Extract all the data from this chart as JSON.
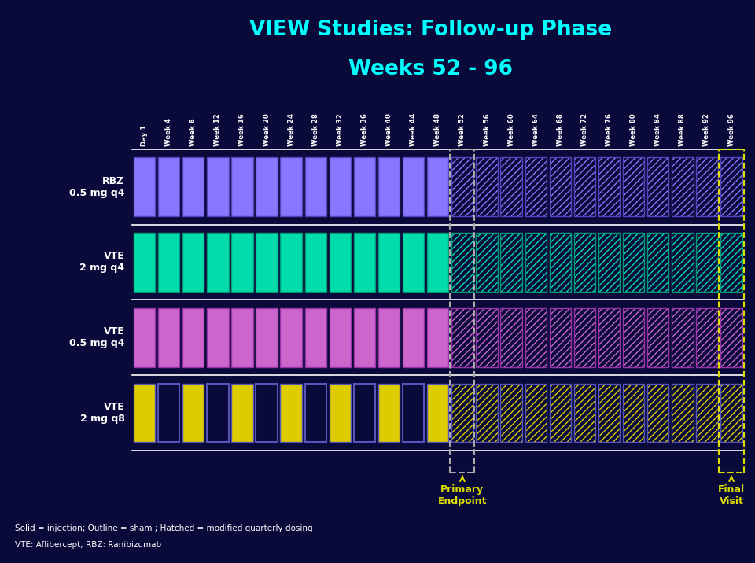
{
  "title_line1": "VIEW Studies: Follow-up Phase",
  "title_line2": "Weeks 52 - 96",
  "title_color": "#00FFFF",
  "bg_color": "#0A0A3A",
  "row_line_color": "#FFFFFF",
  "col_labels": [
    "Day 1",
    "Week 4",
    "Week 8",
    "Week 12",
    "Week 16",
    "Week 20",
    "Week 24",
    "Week 28",
    "Week 32",
    "Week 36",
    "Week 40",
    "Week 44",
    "Week 48",
    "Week 52",
    "Week 56",
    "Week 60",
    "Week 64",
    "Week 68",
    "Week 72",
    "Week 76",
    "Week 80",
    "Week 84",
    "Week 88",
    "Week 92",
    "Week 96"
  ],
  "primary_endpoint_col": 13,
  "final_visit_col": 24,
  "rows": [
    {
      "label": "RBZ\n0.5 mg q4",
      "fill_color": "#8877FF",
      "outline_color": "#5544BB",
      "solid_cols": [
        0,
        1,
        2,
        3,
        4,
        5,
        6,
        7,
        8,
        9,
        10,
        11,
        12
      ],
      "outline_only_cols": [],
      "hatched_cols": [
        13,
        14,
        15,
        16,
        17,
        18,
        19,
        20,
        21,
        22,
        23,
        24
      ]
    },
    {
      "label": "VTE\n2 mg q4",
      "fill_color": "#00DDAA",
      "outline_color": "#009977",
      "solid_cols": [
        0,
        1,
        2,
        3,
        4,
        5,
        6,
        7,
        8,
        9,
        10,
        11,
        12
      ],
      "outline_only_cols": [],
      "hatched_cols": [
        13,
        14,
        15,
        16,
        17,
        18,
        19,
        20,
        21,
        22,
        23,
        24
      ]
    },
    {
      "label": "VTE\n0.5 mg q4",
      "fill_color": "#CC66CC",
      "outline_color": "#9933AA",
      "solid_cols": [
        0,
        1,
        2,
        3,
        4,
        5,
        6,
        7,
        8,
        9,
        10,
        11,
        12
      ],
      "outline_only_cols": [],
      "hatched_cols": [
        13,
        14,
        15,
        16,
        17,
        18,
        19,
        20,
        21,
        22,
        23,
        24
      ]
    },
    {
      "label": "VTE\n2 mg q8",
      "fill_color": "#DDCC00",
      "outline_color": "#5555BB",
      "solid_cols": [
        0,
        2,
        4,
        6,
        8,
        10,
        12
      ],
      "outline_only_cols": [
        1,
        3,
        5,
        7,
        9,
        11
      ],
      "hatched_cols": [
        13,
        14,
        15,
        16,
        17,
        18,
        19,
        20,
        21,
        22,
        23,
        24
      ]
    }
  ],
  "primary_endpoint_text": "Primary\nEndpoint",
  "final_visit_text": "Final\nVisit",
  "annotation_color": "#DDDD00",
  "primary_box_color": "#AAAAAA",
  "final_box_color": "#DDDD00",
  "footnote1": "Solid = injection; Outline = sham ; Hatched = modified quarterly dosing",
  "footnote2": "VTE: Aflibercept; RBZ: Ranibizumab",
  "footnote_color": "#FFFFFF"
}
